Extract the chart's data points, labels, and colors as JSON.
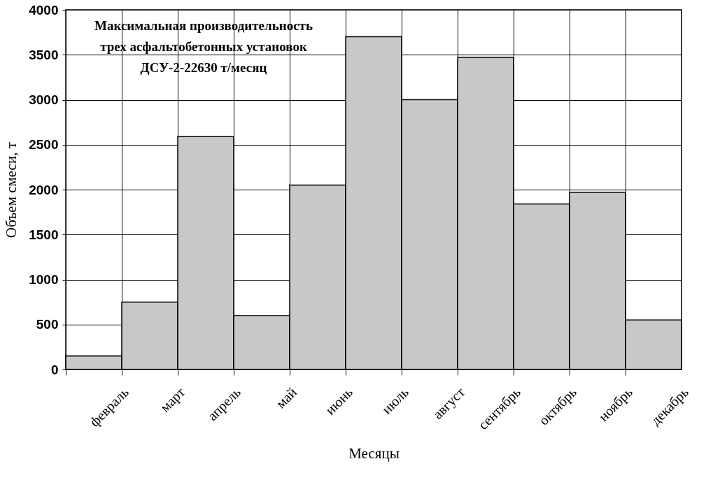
{
  "chart_data": {
    "type": "bar",
    "xlabel": "Месяцы",
    "ylabel": "Объем смеси, т",
    "categories": [
      "февраль",
      "март",
      "апрель",
      "май",
      "июнь",
      "июль",
      "август",
      "сентябрь",
      "октябрь",
      "ноябрь",
      "декабрь"
    ],
    "values": [
      150,
      750,
      2590,
      600,
      2050,
      3700,
      3000,
      3470,
      1840,
      1970,
      550
    ],
    "color": "#c8c8c8",
    "ylim": [
      0,
      4000
    ],
    "yticks": [
      0,
      500,
      1000,
      1500,
      2000,
      2500,
      3000,
      3500,
      4000
    ],
    "grid": true,
    "annotations": [
      "Максимальная производительность\nтрех асфальтобетонных установок\nДСУ-2-22630 т/месяц"
    ]
  }
}
